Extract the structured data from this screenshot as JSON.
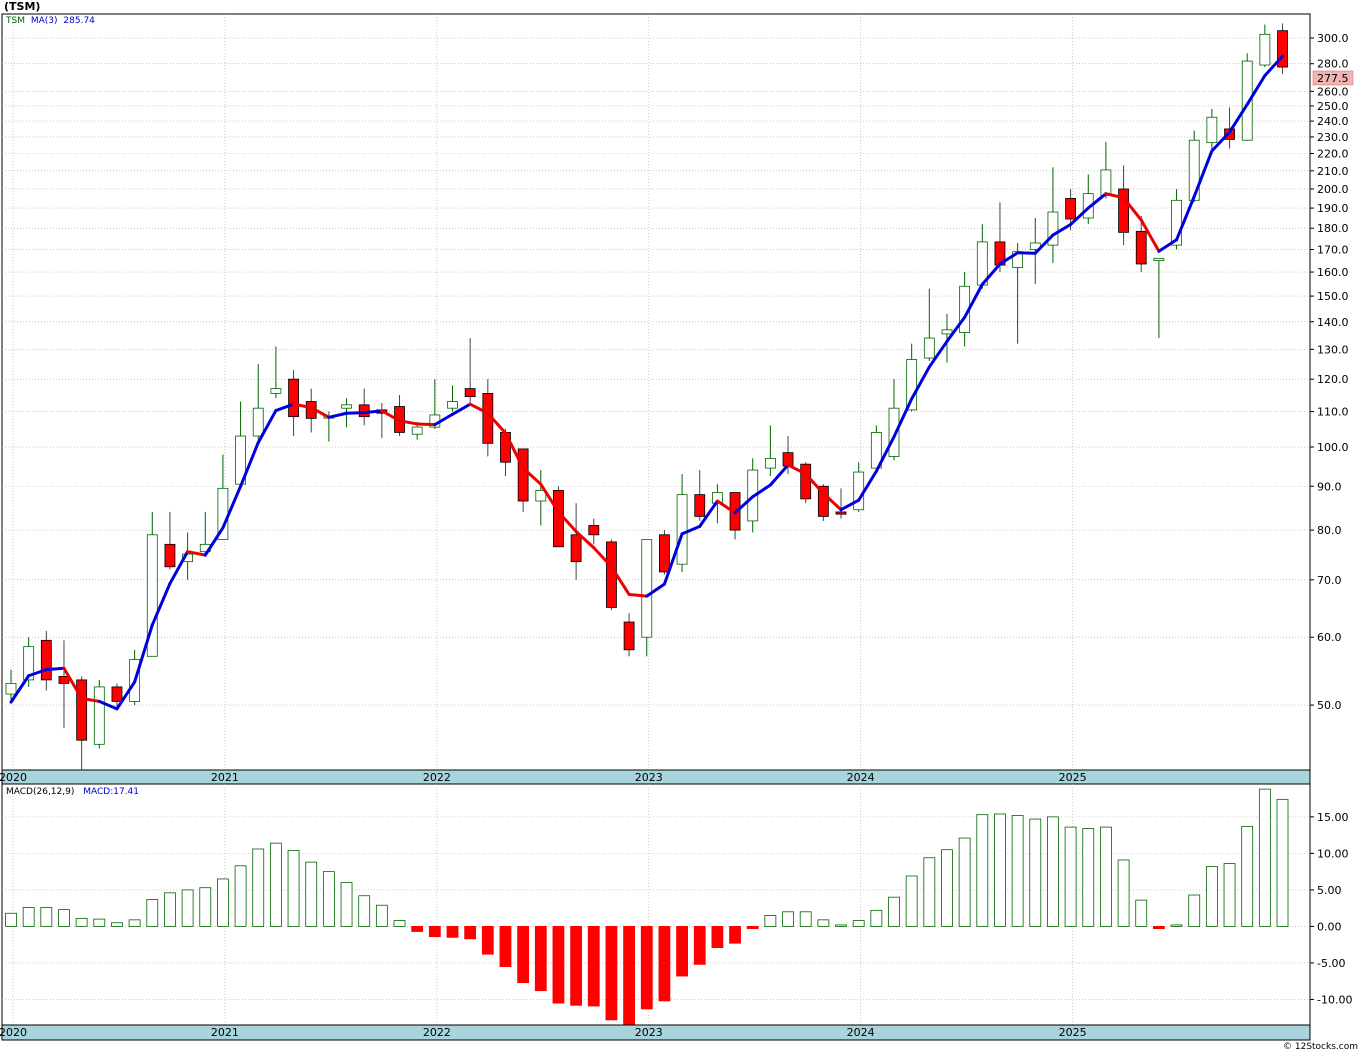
{
  "header": {
    "symbol_label": "(TSM)"
  },
  "price_legend": {
    "ticker": "TSM",
    "ma_label": "MA(3)",
    "ma_value": "285.74"
  },
  "macd_legend": {
    "params": "MACD(26,12,9)",
    "label": "MACD:17.41"
  },
  "last_price_tag": "277.5",
  "credit": "© 12Stocks.com",
  "colors": {
    "up": "#006400",
    "down": "#ff0000",
    "ma_up": "#0000dd",
    "ma_down": "#ee0000",
    "axis_band": "#a8d4dc",
    "grid": "#aaaaaa"
  },
  "chart_data": [
    {
      "type": "candlestick",
      "series_name": "TSM",
      "scale": "log",
      "ylim": [
        42,
        320
      ],
      "y_ticks": [
        50,
        60,
        70,
        80,
        90,
        100,
        110,
        120,
        130,
        140,
        150,
        160,
        170,
        180,
        190,
        200,
        210,
        220,
        230,
        240,
        250,
        260,
        280,
        300
      ],
      "y_tick_labels": [
        "50.0",
        "60.0",
        "70.0",
        "80.0",
        "90.0",
        "100.0",
        "110.0",
        "120.0",
        "130.0",
        "140.0",
        "150.0",
        "160.0",
        "170.0",
        "180.0",
        "190.0",
        "200.0",
        "210.0",
        "220.0",
        "230.0",
        "240.0",
        "250.0",
        "260.0",
        "280.0",
        "300.0"
      ],
      "x_labels": [
        "2020",
        "2021",
        "2022",
        "2023",
        "2024",
        "2025"
      ],
      "x_label_month_index": [
        0,
        12,
        24,
        36,
        48,
        60
      ],
      "candles": [
        {
          "o": 51.5,
          "h": 55.0,
          "l": 50.5,
          "c": 53.0
        },
        {
          "o": 53.5,
          "h": 60.0,
          "l": 52.5,
          "c": 58.5
        },
        {
          "o": 59.5,
          "h": 61.0,
          "l": 52.0,
          "c": 53.5
        },
        {
          "o": 54.0,
          "h": 59.5,
          "l": 47.0,
          "c": 53.0
        },
        {
          "o": 53.5,
          "h": 54.0,
          "l": 42.0,
          "c": 45.5
        },
        {
          "o": 45.0,
          "h": 53.5,
          "l": 44.5,
          "c": 52.5
        },
        {
          "o": 52.5,
          "h": 53.0,
          "l": 49.5,
          "c": 50.5
        },
        {
          "o": 50.5,
          "h": 58.0,
          "l": 50.0,
          "c": 56.5
        },
        {
          "o": 57.0,
          "h": 84.0,
          "l": 57.0,
          "c": 79.0
        },
        {
          "o": 77.0,
          "h": 84.0,
          "l": 72.0,
          "c": 72.5
        },
        {
          "o": 73.5,
          "h": 79.5,
          "l": 70.0,
          "c": 75.0
        },
        {
          "o": 75.5,
          "h": 84.0,
          "l": 74.5,
          "c": 77.0
        },
        {
          "o": 78.0,
          "h": 98.0,
          "l": 78.0,
          "c": 89.5
        },
        {
          "o": 90.5,
          "h": 113.0,
          "l": 90.0,
          "c": 103.0
        },
        {
          "o": 103.0,
          "h": 125.0,
          "l": 102.0,
          "c": 111.0
        },
        {
          "o": 115.5,
          "h": 131.0,
          "l": 114.0,
          "c": 117.0
        },
        {
          "o": 120.0,
          "h": 123.0,
          "l": 103.0,
          "c": 108.5
        },
        {
          "o": 113.0,
          "h": 117.0,
          "l": 104.0,
          "c": 108.0
        },
        {
          "o": 108.5,
          "h": 110.0,
          "l": 101.5,
          "c": 108.5
        },
        {
          "o": 111.0,
          "h": 114.0,
          "l": 105.5,
          "c": 112.0
        },
        {
          "o": 112.0,
          "h": 117.0,
          "l": 106.0,
          "c": 108.5
        },
        {
          "o": 110.5,
          "h": 112.5,
          "l": 102.5,
          "c": 109.5
        },
        {
          "o": 111.5,
          "h": 115.0,
          "l": 103.0,
          "c": 104.0
        },
        {
          "o": 103.5,
          "h": 107.0,
          "l": 102.0,
          "c": 105.5
        },
        {
          "o": 105.5,
          "h": 120.0,
          "l": 105.0,
          "c": 109.0
        },
        {
          "o": 111.0,
          "h": 118.0,
          "l": 110.0,
          "c": 113.0
        },
        {
          "o": 117.0,
          "h": 134.0,
          "l": 112.0,
          "c": 114.5
        },
        {
          "o": 115.5,
          "h": 120.0,
          "l": 97.5,
          "c": 101.0
        },
        {
          "o": 104.0,
          "h": 105.0,
          "l": 92.5,
          "c": 96.0
        },
        {
          "o": 99.5,
          "h": 99.5,
          "l": 84.0,
          "c": 86.5
        },
        {
          "o": 86.5,
          "h": 94.0,
          "l": 81.0,
          "c": 89.0
        },
        {
          "o": 89.0,
          "h": 90.0,
          "l": 76.5,
          "c": 76.5
        },
        {
          "o": 79.0,
          "h": 86.0,
          "l": 70.0,
          "c": 73.5
        },
        {
          "o": 81.0,
          "h": 82.5,
          "l": 77.0,
          "c": 79.0
        },
        {
          "o": 77.5,
          "h": 78.0,
          "l": 64.5,
          "c": 65.0
        },
        {
          "o": 62.5,
          "h": 64.0,
          "l": 57.0,
          "c": 58.0
        },
        {
          "o": 60.0,
          "h": 78.0,
          "l": 57.0,
          "c": 78.0
        },
        {
          "o": 79.0,
          "h": 80.0,
          "l": 71.0,
          "c": 71.5
        },
        {
          "o": 73.0,
          "h": 93.0,
          "l": 71.5,
          "c": 88.0
        },
        {
          "o": 88.0,
          "h": 94.0,
          "l": 82.0,
          "c": 83.0
        },
        {
          "o": 86.0,
          "h": 90.5,
          "l": 81.5,
          "c": 88.5
        },
        {
          "o": 88.5,
          "h": 88.5,
          "l": 78.0,
          "c": 80.0
        },
        {
          "o": 82.0,
          "h": 97.0,
          "l": 79.5,
          "c": 94.0
        },
        {
          "o": 94.5,
          "h": 106.0,
          "l": 92.5,
          "c": 97.0
        },
        {
          "o": 98.5,
          "h": 103.0,
          "l": 93.0,
          "c": 95.0
        },
        {
          "o": 95.5,
          "h": 96.0,
          "l": 86.0,
          "c": 87.0
        },
        {
          "o": 90.0,
          "h": 90.5,
          "l": 82.0,
          "c": 83.0
        },
        {
          "o": 84.0,
          "h": 89.5,
          "l": 82.5,
          "c": 83.5
        },
        {
          "o": 84.5,
          "h": 96.0,
          "l": 84.0,
          "c": 93.5
        },
        {
          "o": 94.5,
          "h": 106.0,
          "l": 93.0,
          "c": 104.0
        },
        {
          "o": 97.5,
          "h": 120.0,
          "l": 96.5,
          "c": 111.0
        },
        {
          "o": 110.5,
          "h": 132.0,
          "l": 110.0,
          "c": 126.5
        },
        {
          "o": 127.0,
          "h": 153.0,
          "l": 126.0,
          "c": 134.0
        },
        {
          "o": 135.5,
          "h": 143.0,
          "l": 125.5,
          "c": 137.0
        },
        {
          "o": 136.0,
          "h": 160.0,
          "l": 131.0,
          "c": 154.0
        },
        {
          "o": 154.5,
          "h": 182.0,
          "l": 153.0,
          "c": 173.5
        },
        {
          "o": 173.5,
          "h": 193.0,
          "l": 160.0,
          "c": 163.0
        },
        {
          "o": 162.0,
          "h": 173.0,
          "l": 132.0,
          "c": 169.0
        },
        {
          "o": 170.0,
          "h": 185.0,
          "l": 155.0,
          "c": 173.0
        },
        {
          "o": 172.0,
          "h": 212.0,
          "l": 164.0,
          "c": 188.0
        },
        {
          "o": 195.0,
          "h": 200.0,
          "l": 179.0,
          "c": 184.5
        },
        {
          "o": 185.0,
          "h": 208.0,
          "l": 182.0,
          "c": 197.5
        },
        {
          "o": 196.5,
          "h": 227.0,
          "l": 195.0,
          "c": 210.5
        },
        {
          "o": 200.0,
          "h": 213.0,
          "l": 172.0,
          "c": 178.0
        },
        {
          "o": 178.5,
          "h": 186.0,
          "l": 160.0,
          "c": 163.5
        },
        {
          "o": 165.0,
          "h": 166.0,
          "l": 134.0,
          "c": 166.0
        },
        {
          "o": 172.0,
          "h": 200.0,
          "l": 170.0,
          "c": 194.0
        },
        {
          "o": 194.0,
          "h": 234.0,
          "l": 193.0,
          "c": 228.0
        },
        {
          "o": 226.5,
          "h": 248.0,
          "l": 222.0,
          "c": 242.5
        },
        {
          "o": 235.0,
          "h": 249.0,
          "l": 223.0,
          "c": 228.5
        },
        {
          "o": 228.0,
          "h": 288.0,
          "l": 227.5,
          "c": 282.0
        },
        {
          "o": 279.0,
          "h": 311.0,
          "l": 277.5,
          "c": 303.0
        },
        {
          "o": 306.0,
          "h": 312.0,
          "l": 272.5,
          "c": 277.5
        }
      ],
      "ma": [
        50.4,
        54.1,
        55.0,
        55.2,
        50.9,
        50.5,
        49.5,
        53.2,
        62.0,
        69.3,
        75.5,
        74.8,
        80.5,
        90.0,
        101.2,
        110.3,
        112.2,
        111.2,
        108.3,
        109.5,
        109.7,
        110.2,
        107.3,
        106.4,
        106.2,
        109.2,
        112.2,
        109.5,
        103.8,
        94.5,
        90.5,
        84.0,
        79.7,
        76.3,
        72.5,
        67.3,
        67.0,
        69.2,
        79.2,
        80.8,
        86.5,
        83.8,
        87.5,
        90.3,
        95.3,
        93.0,
        88.3,
        84.5,
        86.7,
        93.7,
        102.8,
        113.8,
        124.0,
        132.8,
        141.7,
        154.8,
        163.5,
        168.5,
        168.3,
        176.7,
        181.8,
        190.0,
        197.5,
        195.3,
        184.0,
        169.2,
        174.5,
        196.0,
        221.5,
        233.0,
        251.0,
        271.2,
        285.7
      ],
      "ma_color": [
        "up",
        "up",
        "up",
        "up",
        "down",
        "down",
        "up",
        "up",
        "up",
        "up",
        "up",
        "down",
        "up",
        "up",
        "up",
        "up",
        "up",
        "down",
        "down",
        "up",
        "up",
        "up",
        "down",
        "down",
        "down",
        "up",
        "up",
        "down",
        "down",
        "down",
        "down",
        "down",
        "down",
        "down",
        "down",
        "down",
        "down",
        "up",
        "up",
        "up",
        "up",
        "down",
        "up",
        "up",
        "up",
        "down",
        "down",
        "down",
        "up",
        "up",
        "up",
        "up",
        "up",
        "up",
        "up",
        "up",
        "up",
        "up",
        "up",
        "up",
        "up",
        "up",
        "up",
        "down",
        "down",
        "down",
        "up",
        "up",
        "up",
        "up",
        "up",
        "up",
        "up"
      ]
    },
    {
      "type": "bar",
      "series_name": "MACD",
      "ylim": [
        -13.5,
        19.5
      ],
      "y_ticks": [
        -10,
        -5,
        0,
        5,
        10,
        15
      ],
      "y_tick_labels": [
        "-10.00",
        "-5.00",
        "0.00",
        "5.00",
        "10.00",
        "15.00"
      ],
      "x_labels": [
        "2020",
        "2021",
        "2022",
        "2023",
        "2024",
        "2025"
      ],
      "values": [
        1.8,
        2.6,
        2.6,
        2.3,
        1.1,
        1.0,
        0.5,
        0.9,
        3.7,
        4.6,
        5.0,
        5.3,
        6.5,
        8.3,
        10.6,
        11.4,
        10.4,
        8.8,
        7.5,
        6.0,
        4.2,
        2.9,
        0.8,
        -0.7,
        -1.4,
        -1.5,
        -1.7,
        -3.8,
        -5.5,
        -7.7,
        -8.8,
        -10.5,
        -10.8,
        -10.9,
        -12.8,
        -14.0,
        -11.3,
        -10.2,
        -6.8,
        -5.2,
        -2.9,
        -2.3,
        -0.3,
        1.5,
        2.0,
        2.0,
        0.9,
        0.2,
        0.8,
        2.2,
        4.0,
        6.9,
        9.4,
        10.5,
        12.1,
        15.3,
        15.4,
        15.2,
        14.7,
        15.0,
        13.6,
        13.4,
        13.6,
        9.1,
        3.6,
        -0.3,
        0.2,
        4.3,
        8.2,
        8.6,
        13.7,
        18.8,
        17.4
      ],
      "color": [
        "up",
        "up",
        "up",
        "up",
        "up",
        "up",
        "up",
        "up",
        "up",
        "up",
        "up",
        "up",
        "up",
        "up",
        "up",
        "up",
        "up",
        "up",
        "up",
        "up",
        "up",
        "up",
        "up",
        "down",
        "down",
        "down",
        "down",
        "down",
        "down",
        "down",
        "down",
        "down",
        "down",
        "down",
        "down",
        "down",
        "down",
        "down",
        "down",
        "down",
        "down",
        "down",
        "down",
        "up",
        "up",
        "up",
        "up",
        "up",
        "up",
        "up",
        "up",
        "up",
        "up",
        "up",
        "up",
        "up",
        "up",
        "up",
        "up",
        "up",
        "up",
        "up",
        "up",
        "up",
        "up",
        "down",
        "up",
        "up",
        "up",
        "up",
        "up",
        "up",
        "up"
      ]
    }
  ]
}
